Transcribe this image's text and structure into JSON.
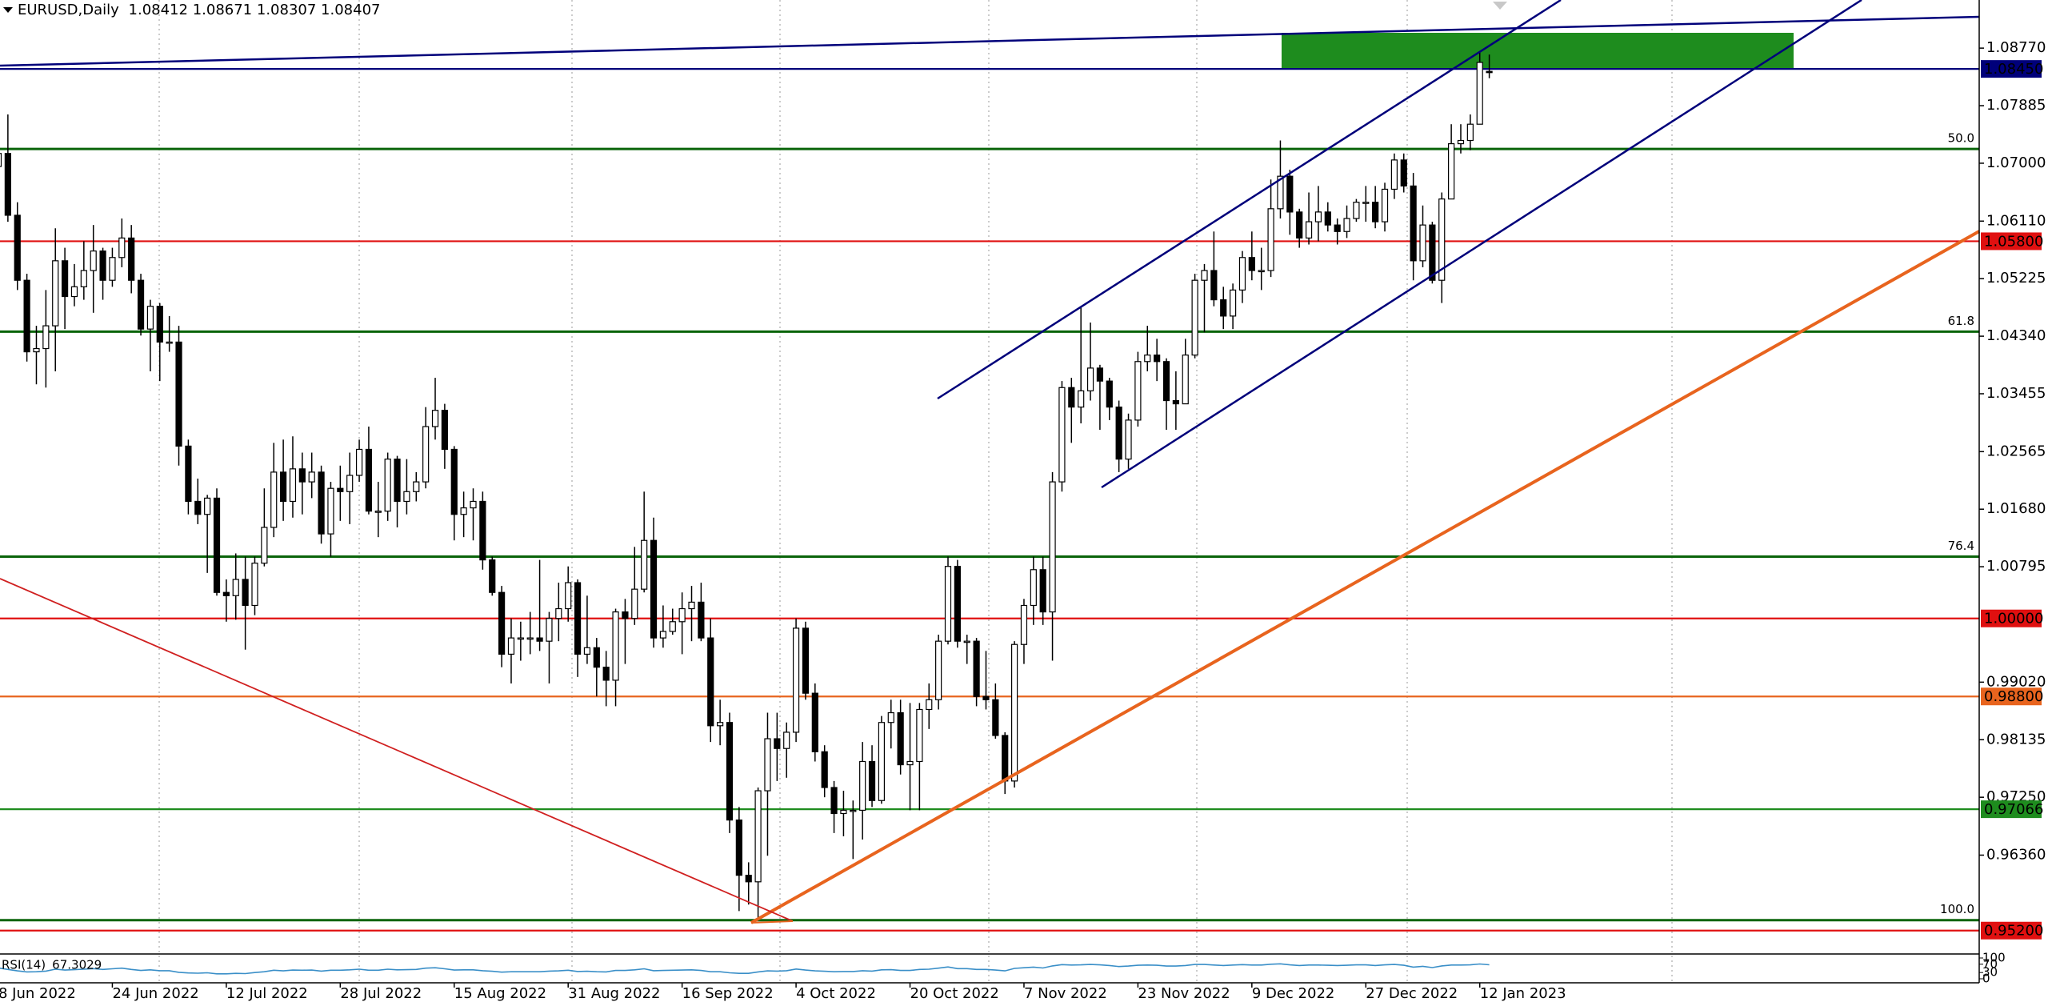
{
  "chart_data": {
    "type": "candlestick",
    "title": "EURUSD,Daily",
    "categories": [
      "8 Jun 2022",
      null,
      null,
      null,
      null,
      null,
      null,
      null,
      null,
      null,
      null,
      null,
      "24 Jun 2022",
      null,
      null,
      null,
      null,
      null,
      null,
      null,
      null,
      null,
      null,
      null,
      "12 Jul 2022",
      null,
      null,
      null,
      null,
      null,
      null,
      null,
      null,
      null,
      null,
      null,
      "28 Jul 2022",
      null,
      null,
      null,
      null,
      null,
      null,
      null,
      null,
      null,
      null,
      null,
      "15 Aug 2022",
      null,
      null,
      null,
      null,
      null,
      null,
      null,
      null,
      null,
      null,
      null,
      "31 Aug 2022",
      null,
      null,
      null,
      null,
      null,
      null,
      null,
      null,
      null,
      null,
      null,
      "16 Sep 2022",
      null,
      null,
      null,
      null,
      null,
      null,
      null,
      null,
      null,
      null,
      null,
      "4 Oct 2022",
      null,
      null,
      null,
      null,
      null,
      null,
      null,
      null,
      null,
      null,
      null,
      "20 Oct 2022",
      null,
      null,
      null,
      null,
      null,
      null,
      null,
      null,
      null,
      null,
      null,
      "7 Nov 2022",
      null,
      null,
      null,
      null,
      null,
      null,
      null,
      null,
      null,
      null,
      null,
      "23 Nov 2022",
      null,
      null,
      null,
      null,
      null,
      null,
      null,
      null,
      null,
      null,
      null,
      "9 Dec 2022",
      null,
      null,
      null,
      null,
      null,
      null,
      null,
      null,
      null,
      null,
      null,
      "27 Dec 2022",
      null,
      null,
      null,
      null,
      null,
      null,
      null,
      null,
      null,
      null,
      null,
      "12 Jan 2023",
      null
    ],
    "open": [
      1.0695,
      1.0715,
      1.062,
      1.052,
      1.041,
      1.0415,
      1.045,
      1.055,
      1.0495,
      1.051,
      1.0535,
      1.0565,
      1.052,
      1.0555,
      1.0585,
      1.052,
      1.0445,
      1.048,
      1.0425,
      1.0425,
      1.0265,
      1.018,
      1.016,
      1.0185,
      1.004,
      1.0035,
      1.006,
      1.002,
      1.0085,
      1.014,
      1.0225,
      1.018,
      1.023,
      1.021,
      1.0225,
      1.013,
      1.02,
      1.0195,
      1.022,
      1.026,
      1.0165,
      1.0165,
      1.0245,
      1.018,
      1.0195,
      1.021,
      1.0295,
      1.032,
      1.026,
      1.016,
      1.017,
      1.018,
      1.009,
      1.004,
      0.9945,
      0.997,
      0.997,
      0.997,
      0.9965,
      1.0,
      1.0015,
      1.0055,
      0.9945,
      0.9955,
      0.9925,
      0.9905,
      1.001,
      1.0,
      1.0045,
      1.012,
      0.997,
      0.998,
      0.9995,
      1.0015,
      1.0025,
      0.997,
      0.9835,
      0.984,
      0.969,
      0.9605,
      0.9595,
      0.9735,
      0.9815,
      0.98,
      0.9825,
      0.9985,
      0.9885,
      0.9795,
      0.974,
      0.97,
      0.9705,
      0.9705,
      0.978,
      0.972,
      0.984,
      0.9855,
      0.9775,
      0.978,
      0.986,
      0.9875,
      0.9965,
      1.008,
      0.9965,
      0.9965,
      0.988,
      0.9875,
      0.982,
      0.975,
      0.996,
      1.002,
      1.0075,
      1.001,
      1.021,
      1.0355,
      1.0325,
      1.035,
      1.0385,
      1.0365,
      1.0325,
      1.0245,
      1.0305,
      1.0395,
      1.0405,
      1.0395,
      1.0335,
      1.033,
      1.0405,
      1.052,
      1.0535,
      1.049,
      1.0465,
      1.0505,
      1.0555,
      1.0535,
      1.0535,
      1.063,
      1.068,
      1.0625,
      1.0585,
      1.061,
      1.0625,
      1.0605,
      1.0595,
      1.0615,
      1.064,
      1.064,
      1.061,
      1.066,
      1.0705,
      1.0665,
      1.055,
      1.0605,
      1.052,
      1.0645,
      1.073,
      1.0735,
      1.076,
      1.08412
    ],
    "high": [
      1.0775,
      1.0775,
      1.064,
      1.053,
      1.045,
      1.0505,
      1.06,
      1.057,
      1.0545,
      1.058,
      1.0605,
      1.057,
      1.057,
      1.0615,
      1.0605,
      1.053,
      1.049,
      1.0485,
      1.0465,
      1.045,
      1.0275,
      1.0215,
      1.019,
      1.02,
      1.006,
      1.01,
      1.0095,
      1.0095,
      1.02,
      1.027,
      1.0275,
      1.028,
      1.0255,
      1.0255,
      1.0235,
      1.021,
      1.0235,
      1.0255,
      1.0275,
      1.0295,
      1.021,
      1.0255,
      1.025,
      1.0245,
      1.0225,
      1.0325,
      1.037,
      1.033,
      1.0265,
      1.0195,
      1.02,
      1.0195,
      1.0095,
      1.005,
      1.0,
      0.9995,
      1.001,
      1.009,
      1.001,
      1.0055,
      1.008,
      1.006,
      1.0035,
      0.997,
      0.995,
      1.0015,
      1.003,
      1.011,
      1.0195,
      1.0155,
      1.002,
      1.0015,
      1.004,
      1.005,
      1.0055,
      1.0,
      0.9875,
      0.9855,
      0.971,
      0.9625,
      0.974,
      0.9855,
      0.9855,
      0.984,
      1.0,
      0.9995,
      0.99,
      0.9805,
      0.975,
      0.9735,
      0.972,
      0.981,
      0.9805,
      0.985,
      0.9875,
      0.9875,
      0.987,
      0.987,
      0.99,
      0.9975,
      1.0095,
      1.009,
      0.9975,
      0.997,
      0.995,
      0.99,
      0.9825,
      0.9965,
      1.003,
      1.0095,
      1.0095,
      1.0225,
      1.0365,
      1.037,
      1.048,
      1.0455,
      1.039,
      1.037,
      1.0335,
      1.0315,
      1.041,
      1.045,
      1.043,
      1.04,
      1.038,
      1.043,
      1.053,
      1.0545,
      1.0595,
      1.051,
      1.0515,
      1.0565,
      1.0595,
      1.057,
      1.0675,
      1.0735,
      1.069,
      1.063,
      1.0655,
      1.0665,
      1.064,
      1.0615,
      1.0635,
      1.0645,
      1.0665,
      1.0665,
      1.067,
      1.0715,
      1.0715,
      1.0685,
      1.0635,
      1.061,
      1.0655,
      1.076,
      1.076,
      1.0775,
      1.087,
      1.08671
    ],
    "low": [
      1.066,
      1.061,
      1.0505,
      1.0395,
      1.036,
      1.0355,
      1.038,
      1.0445,
      1.048,
      1.049,
      1.047,
      1.049,
      1.051,
      1.054,
      1.05,
      1.0435,
      1.038,
      1.0365,
      1.041,
      1.0235,
      1.016,
      1.0145,
      1.007,
      1.0035,
      0.9995,
      0.9998,
      0.9952,
      1.0005,
      1.008,
      1.0125,
      1.015,
      1.0155,
      1.016,
      1.0185,
      1.0115,
      1.0095,
      1.015,
      1.0145,
      1.021,
      1.016,
      1.0125,
      1.015,
      1.014,
      1.016,
      1.018,
      1.02,
      1.0275,
      1.023,
      1.012,
      1.0125,
      1.012,
      1.0075,
      1.0035,
      0.9925,
      0.99,
      0.9935,
      0.9945,
      0.995,
      0.99,
      0.9965,
      0.9995,
      0.991,
      0.993,
      0.988,
      0.9865,
      0.9865,
      0.993,
      0.999,
      1.004,
      0.9955,
      0.9955,
      0.9975,
      0.9945,
      0.9965,
      0.9965,
      0.981,
      0.9805,
      0.967,
      0.955,
      0.956,
      0.9535,
      0.9635,
      0.975,
      0.9755,
      0.981,
      0.9875,
      0.978,
      0.9725,
      0.967,
      0.9665,
      0.963,
      0.966,
      0.971,
      0.9715,
      0.98,
      0.976,
      0.9705,
      0.9705,
      0.983,
      0.986,
      0.996,
      0.9955,
      0.993,
      0.9865,
      0.986,
      0.9815,
      0.973,
      0.974,
      0.993,
      0.999,
      0.999,
      0.9935,
      1.0195,
      1.027,
      1.03,
      1.0335,
      1.029,
      1.0305,
      1.0225,
      1.023,
      1.0295,
      1.038,
      1.0365,
      1.029,
      1.029,
      1.033,
      1.04,
      1.044,
      1.048,
      1.0445,
      1.0445,
      1.0485,
      1.052,
      1.0505,
      1.0525,
      1.0615,
      1.059,
      1.057,
      1.0575,
      1.058,
      1.0595,
      1.0575,
      1.0585,
      1.061,
      1.061,
      1.06,
      1.0595,
      1.0645,
      1.0655,
      1.052,
      1.054,
      1.0515,
      1.0485,
      1.0645,
      1.0715,
      1.072,
      1.076,
      1.08307
    ],
    "close": [
      1.0715,
      1.062,
      1.052,
      1.041,
      1.0415,
      1.045,
      1.055,
      1.0495,
      1.051,
      1.0535,
      1.0565,
      1.052,
      1.0555,
      1.0585,
      1.052,
      1.0445,
      1.048,
      1.0425,
      1.0425,
      1.0265,
      1.018,
      1.016,
      1.0185,
      1.004,
      1.0035,
      1.006,
      1.002,
      1.0085,
      1.014,
      1.0225,
      1.018,
      1.023,
      1.021,
      1.0225,
      1.013,
      1.02,
      1.0195,
      1.022,
      1.026,
      1.0165,
      1.0165,
      1.0245,
      1.018,
      1.0195,
      1.021,
      1.0295,
      1.032,
      1.026,
      1.016,
      1.017,
      1.018,
      1.009,
      1.004,
      0.9945,
      0.997,
      0.997,
      0.997,
      0.9965,
      1.0,
      1.0015,
      1.0055,
      0.9945,
      0.9955,
      0.9925,
      0.9905,
      1.001,
      1.0,
      1.0045,
      1.012,
      0.997,
      0.998,
      0.9995,
      1.0015,
      1.0025,
      0.997,
      0.9835,
      0.984,
      0.969,
      0.9605,
      0.9595,
      0.9735,
      0.9815,
      0.98,
      0.9825,
      0.9985,
      0.9885,
      0.9795,
      0.974,
      0.97,
      0.9705,
      0.9705,
      0.978,
      0.972,
      0.984,
      0.9855,
      0.9775,
      0.978,
      0.986,
      0.9875,
      0.9965,
      1.008,
      0.9965,
      0.9965,
      0.988,
      0.9875,
      0.982,
      0.975,
      0.996,
      1.002,
      1.0075,
      1.001,
      1.021,
      1.0355,
      1.0325,
      1.035,
      1.0385,
      1.0365,
      1.0325,
      1.0245,
      1.0305,
      1.0395,
      1.0405,
      1.0395,
      1.0335,
      1.033,
      1.0405,
      1.052,
      1.0535,
      1.049,
      1.0465,
      1.0505,
      1.0555,
      1.0535,
      1.0535,
      1.063,
      1.068,
      1.0625,
      1.0585,
      1.061,
      1.0625,
      1.0605,
      1.0595,
      1.0615,
      1.064,
      1.064,
      1.061,
      1.066,
      1.0705,
      1.0665,
      1.055,
      1.0605,
      1.052,
      1.0645,
      1.073,
      1.0735,
      1.076,
      1.0855,
      1.08407
    ],
    "up_color": "#ffffff",
    "down_color": "#000000",
    "ylim": [
      0.9484,
      1.0951
    ],
    "yticks": [
      {
        "value": 1.0877,
        "label": "1.08770"
      },
      1.07885,
      {
        "value": 1.07,
        "label": "1.07000"
      },
      {
        "value": 1.0611,
        "label": "1.06110"
      },
      1.05225,
      {
        "value": 1.0434,
        "label": "1.04340"
      },
      1.03455,
      1.02565,
      {
        "value": 1.0168,
        "label": "1.01680"
      },
      1.00795,
      {
        "value": 0.9902,
        "label": "0.99020"
      },
      0.98135,
      {
        "value": 0.9725,
        "label": "0.97250"
      },
      {
        "value": 0.9636,
        "label": "0.96360"
      }
    ],
    "levels": [
      {
        "price": {
          "value": 1.0845,
          "label": "1.08450"
        },
        "color": "#00007a"
      },
      {
        "price": {
          "value": 1.058,
          "label": "1.05800"
        },
        "color": "#e01010"
      },
      {
        "price": {
          "value": 1.0,
          "label": "1.00000"
        },
        "color": "#e01010"
      },
      {
        "price": {
          "value": 0.988,
          "label": "0.98800"
        },
        "color": "#e8641e"
      },
      {
        "price": 0.97066,
        "color": "#1e8c1e"
      },
      {
        "price": {
          "value": 0.952,
          "label": "0.95200"
        },
        "color": "#e01010"
      }
    ],
    "fib_levels": [
      {
        "ratio": {
          "value": 50,
          "label": "50.0"
        },
        "price": 1.0722
      },
      {
        "ratio": {
          "value": 61.8,
          "label": "61.8"
        },
        "price": 1.0441
      },
      {
        "ratio": {
          "value": 76.4,
          "label": "76.4"
        },
        "price": 1.0095
      },
      {
        "ratio": {
          "value": 100,
          "label": "100.0"
        },
        "price": 0.9536
      }
    ],
    "fib_color": "#0a640a",
    "rsi": {
      "name": "RSI(14)",
      "color": "#3a8fc8",
      "ylim": [
        0,
        100
      ],
      "yticks": [
        0,
        30,
        70,
        100
      ],
      "values": [
        52,
        45,
        38,
        33,
        34,
        37,
        46,
        42,
        44,
        46,
        49,
        45,
        48,
        51,
        45,
        40,
        43,
        39,
        39,
        31,
        28,
        27,
        29,
        24,
        24,
        26,
        25,
        30,
        34,
        41,
        38,
        42,
        41,
        42,
        37,
        41,
        41,
        43,
        46,
        41,
        41,
        46,
        43,
        44,
        45,
        51,
        53,
        48,
        42,
        43,
        43,
        39,
        36,
        32,
        34,
        34,
        34,
        34,
        37,
        38,
        41,
        35,
        36,
        34,
        33,
        40,
        40,
        43,
        48,
        39,
        40,
        41,
        42,
        43,
        40,
        34,
        34,
        29,
        26,
        26,
        33,
        38,
        37,
        39,
        47,
        42,
        38,
        36,
        34,
        35,
        35,
        39,
        37,
        43,
        44,
        40,
        40,
        45,
        46,
        51,
        57,
        49,
        49,
        45,
        45,
        42,
        38,
        50,
        53,
        56,
        52,
        62,
        68,
        66,
        67,
        69,
        67,
        64,
        59,
        61,
        65,
        66,
        65,
        61,
        61,
        64,
        69,
        69,
        66,
        64,
        66,
        68,
        66,
        66,
        70,
        72,
        67,
        64,
        66,
        66,
        65,
        64,
        65,
        67,
        67,
        64,
        67,
        69,
        65,
        56,
        60,
        54,
        62,
        66,
        66,
        67,
        71,
        67.3029
      ]
    }
  }
}
